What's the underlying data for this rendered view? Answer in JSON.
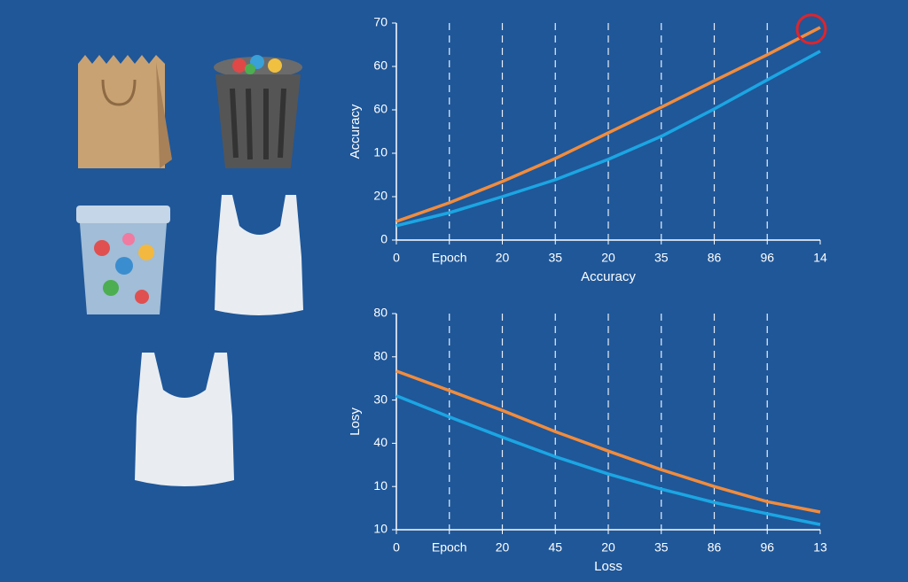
{
  "chart_data": [
    {
      "type": "line",
      "ylabel": "Accuracy",
      "xlabel": "Accuracy",
      "categories": [
        "0",
        "Epoch",
        "20",
        "35",
        "20",
        "35",
        "86",
        "96",
        "14"
      ],
      "ylim": [
        0,
        5
      ],
      "yticks": [
        {
          "value": 0,
          "label": "0"
        },
        {
          "value": 1,
          "label": "20"
        },
        {
          "value": 2,
          "label": "10"
        },
        {
          "value": 3,
          "label": "60"
        },
        {
          "value": 4,
          "label": "60"
        },
        {
          "value": 5,
          "label": "70"
        }
      ],
      "grid": true,
      "series": [
        {
          "color": "#f28c3c",
          "values": [
            0.43,
            0.86,
            1.35,
            1.88,
            2.47,
            3.06,
            3.67,
            4.27,
            4.9
          ]
        },
        {
          "color": "#1ba6e3",
          "values": [
            0.33,
            0.63,
            1.0,
            1.39,
            1.86,
            2.39,
            3.02,
            3.69,
            4.35
          ]
        }
      ]
    },
    {
      "type": "line",
      "ylabel": "Losy",
      "xlabel": "Loss",
      "categories": [
        "0",
        "Epoch",
        "20",
        "45",
        "20",
        "35",
        "86",
        "96",
        "13"
      ],
      "ylim": [
        0,
        5
      ],
      "yticks": [
        {
          "value": 0,
          "label": "10"
        },
        {
          "value": 1,
          "label": "10"
        },
        {
          "value": 2,
          "label": "40"
        },
        {
          "value": 3,
          "label": "30"
        },
        {
          "value": 4,
          "label": "80"
        },
        {
          "value": 5,
          "label": "80"
        }
      ],
      "grid": true,
      "series": [
        {
          "color": "#f28c3c",
          "values": [
            3.67,
            3.22,
            2.76,
            2.27,
            1.82,
            1.39,
            1.0,
            0.65,
            0.41
          ]
        },
        {
          "color": "#1ba6e3",
          "values": [
            3.1,
            2.61,
            2.14,
            1.69,
            1.29,
            0.94,
            0.63,
            0.37,
            0.12
          ]
        }
      ]
    }
  ]
}
